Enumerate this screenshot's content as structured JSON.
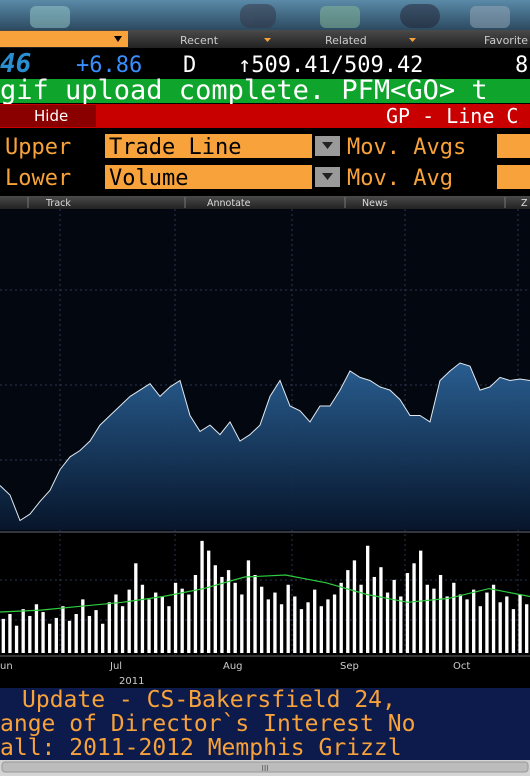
{
  "toolbar": {
    "recent": "Recent",
    "related": "Related",
    "favorites": "Favorite"
  },
  "quote": {
    "last": "46",
    "change": "+6.86",
    "flag": "D",
    "bid_ask": "↑509.41/509.42",
    "extra": "8"
  },
  "message": "gif upload complete. PFM<GO> t",
  "header": {
    "hide": "Hide",
    "title": "GP - Line C"
  },
  "settings": {
    "upper_label": "Upper",
    "upper_value": "Trade Line",
    "upper_ma": "Mov. Avgs",
    "lower_label": "Lower",
    "lower_value": "Volume",
    "lower_ma": "Mov. Avg"
  },
  "chart_toolbar": {
    "track": "Track",
    "annotate": "Annotate",
    "news": "News",
    "zoom": "Z"
  },
  "chart_data": [
    {
      "type": "area",
      "color": "#1f4f80",
      "values": [
        14,
        11,
        3,
        5,
        9,
        12.5,
        19,
        23,
        25,
        28,
        33,
        36,
        39,
        42,
        44,
        46,
        42,
        45,
        47,
        36,
        31,
        33,
        30,
        34,
        28,
        30,
        33,
        42,
        47,
        39,
        37.5,
        34,
        39,
        39,
        44,
        50,
        48,
        47,
        45,
        44,
        41,
        36,
        36,
        34,
        47,
        50,
        52.5,
        51.5,
        44,
        45,
        48,
        47,
        47.5,
        47
      ],
      "ylim": [
        0,
        100
      ]
    },
    {
      "type": "bar",
      "color": "#ffffff",
      "values": [
        35,
        40,
        28,
        45,
        38,
        50,
        42,
        30,
        36,
        48,
        33,
        40,
        55,
        38,
        44,
        30,
        52,
        60,
        48,
        65,
        92,
        70,
        55,
        62,
        58,
        48,
        72,
        66,
        60,
        80,
        115,
        105,
        90,
        78,
        85,
        72,
        60,
        95,
        80,
        68,
        55,
        62,
        50,
        70,
        58,
        45,
        52,
        65,
        48,
        55,
        60,
        72,
        85,
        95,
        70,
        110,
        78,
        88,
        62,
        75,
        58,
        82,
        92,
        105,
        70,
        66,
        80,
        58,
        72,
        60,
        55,
        65,
        48,
        62,
        70,
        52,
        58,
        45,
        60,
        50
      ],
      "ylim": [
        0,
        120
      ],
      "moving_average": {
        "color": "#2ecc40",
        "values": [
          42,
          44,
          48,
          52,
          58,
          66,
          78,
          80,
          72,
          60,
          52,
          56,
          66,
          58
        ]
      },
      "x_labels": [
        "un",
        "Jul",
        "Aug",
        "Sep",
        "Oct"
      ],
      "x_year": "2011"
    }
  ],
  "news": [
    "Update - CS-Bakersfield 24,",
    "ange of Director`s Interest No",
    "all: 2011-2012 Memphis Grizzl"
  ],
  "scrollbar": "III"
}
